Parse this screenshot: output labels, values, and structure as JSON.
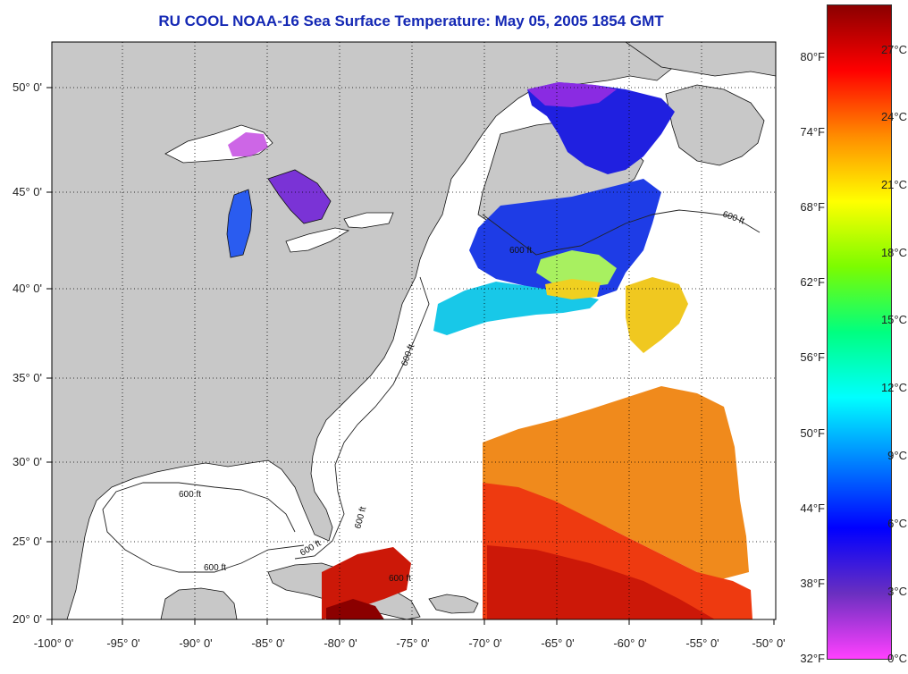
{
  "title": "RU COOL  NOAA-16  Sea Surface Temperature:  May 05, 2005 1854 GMT",
  "latitude_labels": [
    "50° 0'",
    "45° 0'",
    "40° 0'",
    "35° 0'",
    "30° 0'",
    "25° 0'",
    "20° 0'"
  ],
  "longitude_labels": [
    "-100° 0'",
    "-95° 0'",
    "-90° 0'",
    "-85° 0'",
    "-80° 0'",
    "-75° 0'",
    "-70° 0'",
    "-65° 0'",
    "-60° 0'",
    "-55° 0'",
    "-50° 0'"
  ],
  "colorbar": {
    "fahrenheit_labels": [
      "80°F",
      "74°F",
      "68°F",
      "62°F",
      "56°F",
      "50°F",
      "44°F",
      "38°F",
      "32°F"
    ],
    "celsius_labels": [
      "27°C",
      "24°C",
      "21°C",
      "18°C",
      "15°C",
      "12°C",
      "9°C",
      "6°C",
      "3°C",
      "0°C"
    ],
    "colors_top_to_bottom": [
      "#8b0000",
      "#ff0000",
      "#ff8c00",
      "#ffff00",
      "#7cfc00",
      "#00ff80",
      "#00ffff",
      "#0080ff",
      "#0000ff",
      "#6a2fc0",
      "#ff40ff"
    ]
  },
  "depth_contour_labels": [
    "600 ft",
    "600 ft",
    "600 ft",
    "600 ft",
    "600 ft",
    "600 ft",
    "600 ft",
    "600 ft"
  ],
  "colors": {
    "land": "#c8c8c8",
    "water_no_data": "#ffffff",
    "title": "#1428b4",
    "grid": "#000000"
  }
}
